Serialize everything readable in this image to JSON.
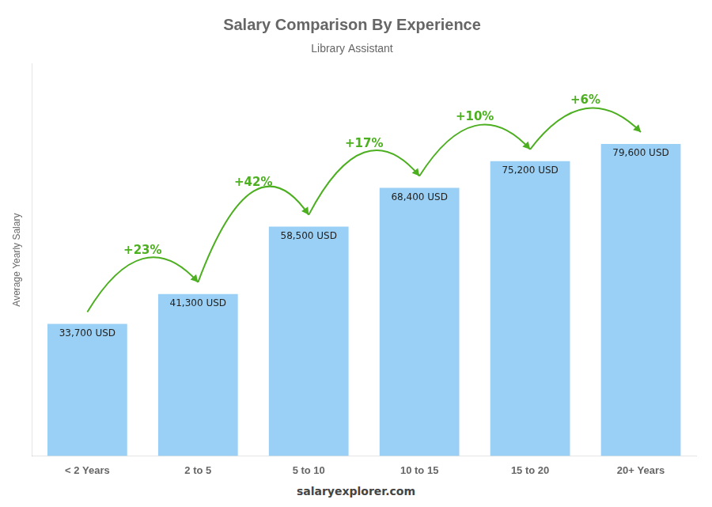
{
  "chart_data": {
    "type": "bar",
    "title": "Salary Comparison By Experience",
    "subtitle": "Library Assistant",
    "categories": [
      "< 2 Years",
      "2 to 5",
      "5 to 10",
      "10 to 15",
      "15 to 20",
      "20+ Years"
    ],
    "values": [
      33700,
      41300,
      58500,
      68400,
      75200,
      79600
    ],
    "value_labels": [
      "33,700 USD",
      "41,300 USD",
      "58,500 USD",
      "68,400 USD",
      "75,200 USD",
      "79,600 USD"
    ],
    "data_labels": true,
    "annotations": [
      "+23%",
      "+42%",
      "+17%",
      "+10%",
      "+6%"
    ],
    "ylabel": "Average Yearly Salary",
    "ylim": [
      0,
      100000
    ],
    "tick_labels": "x",
    "grid": false,
    "footer": "salaryexplorer.com"
  }
}
